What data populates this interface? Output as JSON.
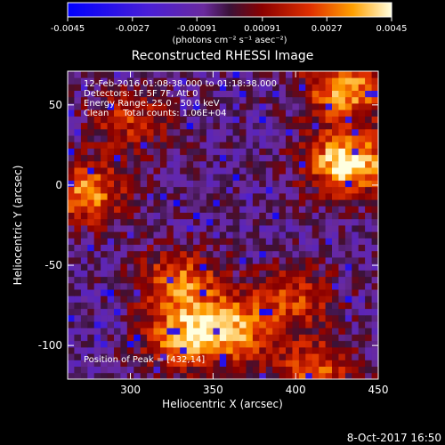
{
  "colorbar": {
    "ticks": [
      "-0.0045",
      "-0.0027",
      "-0.00091",
      "0.00091",
      "0.0027",
      "0.0045"
    ],
    "tick_values": [
      -0.0045,
      -0.0027,
      -0.00091,
      0.00091,
      0.0027,
      0.0045
    ],
    "range": [
      -0.0045,
      0.0045
    ]
  },
  "footer_date": "8-Oct-2017 16:50",
  "info_lines": [
    "12-Feb-2016 01:08:38.000 to 01:18:38.000",
    "Detectors: 1F 5F 7F, Att 0",
    "Energy Range: 25.0 - 50.0 keV",
    "Clean     Total counts: 1.06E+04"
  ],
  "peak_label": "Position of Peak = [432,14]",
  "chart_data": {
    "type": "heatmap",
    "title": "Reconstructed RHESSI Image",
    "xlabel": "Heliocentric X (arcsec)",
    "ylabel": "Heliocentric Y (arcsec)",
    "colorbar_label": "(photons cm⁻² s⁻¹ asec⁻²)",
    "xlim": [
      262,
      450
    ],
    "ylim": [
      -121,
      71
    ],
    "xticks": [
      300,
      350,
      400,
      450
    ],
    "yticks": [
      50,
      0,
      -50,
      -100
    ],
    "sources": [
      {
        "x": 432,
        "y": 14,
        "intensity": 0.0045
      },
      {
        "x": 430,
        "y": 60,
        "intensity": 0.0035
      },
      {
        "x": 272,
        "y": -5,
        "intensity": 0.0032
      },
      {
        "x": 330,
        "y": -60,
        "intensity": 0.003
      },
      {
        "x": 360,
        "y": -90,
        "intensity": 0.0033
      },
      {
        "x": 330,
        "y": -95,
        "intensity": 0.0028
      },
      {
        "x": 410,
        "y": -115,
        "intensity": 0.0026
      },
      {
        "x": 300,
        "y": 40,
        "intensity": 0.002
      },
      {
        "x": 400,
        "y": -70,
        "intensity": 0.0022
      }
    ]
  }
}
